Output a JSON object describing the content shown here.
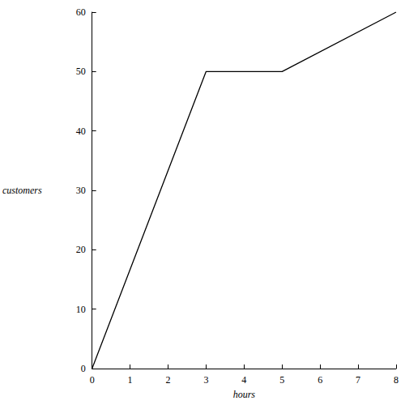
{
  "chart_data": {
    "type": "line",
    "x_label": "hours",
    "y_label": "customers",
    "x": [
      0,
      3,
      5,
      8
    ],
    "series": [
      {
        "name": "customers",
        "color": "#000000",
        "values": [
          0,
          50,
          50,
          60
        ],
        "marker": "none",
        "line_style": "solid"
      }
    ],
    "xlim": [
      0,
      8
    ],
    "xticks": [
      0,
      1,
      2,
      3,
      4,
      5,
      6,
      7,
      8
    ],
    "ylim": [
      0,
      60
    ],
    "yticks": [
      0,
      10,
      20,
      30,
      40,
      50,
      60
    ],
    "grid": false
  }
}
